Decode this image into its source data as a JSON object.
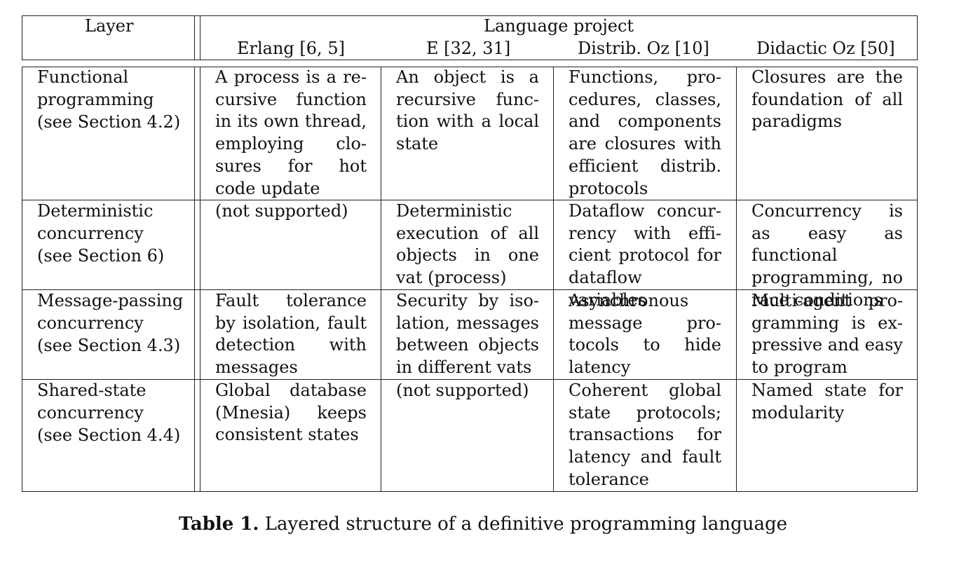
{
  "table": {
    "header": {
      "layer": "Layer",
      "group": "Language project",
      "columns": [
        "Erlang [6, 5]",
        "E [32, 31]",
        "Distrib. Oz [10]",
        "Didactic Oz [50]"
      ]
    },
    "rows": [
      {
        "layer": [
          "Functional",
          "programming",
          "(see Section 4.2)"
        ],
        "cells": [
          "A process is a re­cursive function in its own thread, employing clo­sures for hot code update",
          "An object is a recursive func­tion with a local state",
          "Functions, pro­cedures, classes, and components are closures with efficient distrib. protocols",
          "Closures are the foundation of all paradigms"
        ]
      },
      {
        "layer": [
          "Deterministic",
          "concurrency",
          "(see Section 6)"
        ],
        "cells": [
          "(not supported)",
          "Deterministic execution of all objects in one vat (process)",
          "Dataflow concur­rency with effi­cient protocol for dataflow variables",
          "Concurrency is as easy as functional programming, no race conditions"
        ]
      },
      {
        "layer": [
          "Message-passing",
          "concurrency",
          "(see Section 4.3)"
        ],
        "cells": [
          "Fault tolerance by isolation, fault detection with messages",
          "Security by iso­lation, messages between objects in different vats",
          "Asynchronous message pro­tocols to hide latency",
          "Multi-agent pro­gramming is ex­pressive and easy to program"
        ]
      },
      {
        "layer": [
          "Shared-state",
          "concurrency",
          "(see Section 4.4)"
        ],
        "cells": [
          "Global database (Mnesia) keeps consistent states",
          "(not supported)",
          "Coherent global state protocols; transactions for latency and fault tolerance",
          "Named state for modularity"
        ]
      }
    ]
  },
  "caption": {
    "label": "Table 1.",
    "text": "Layered structure of a definitive programming language"
  }
}
